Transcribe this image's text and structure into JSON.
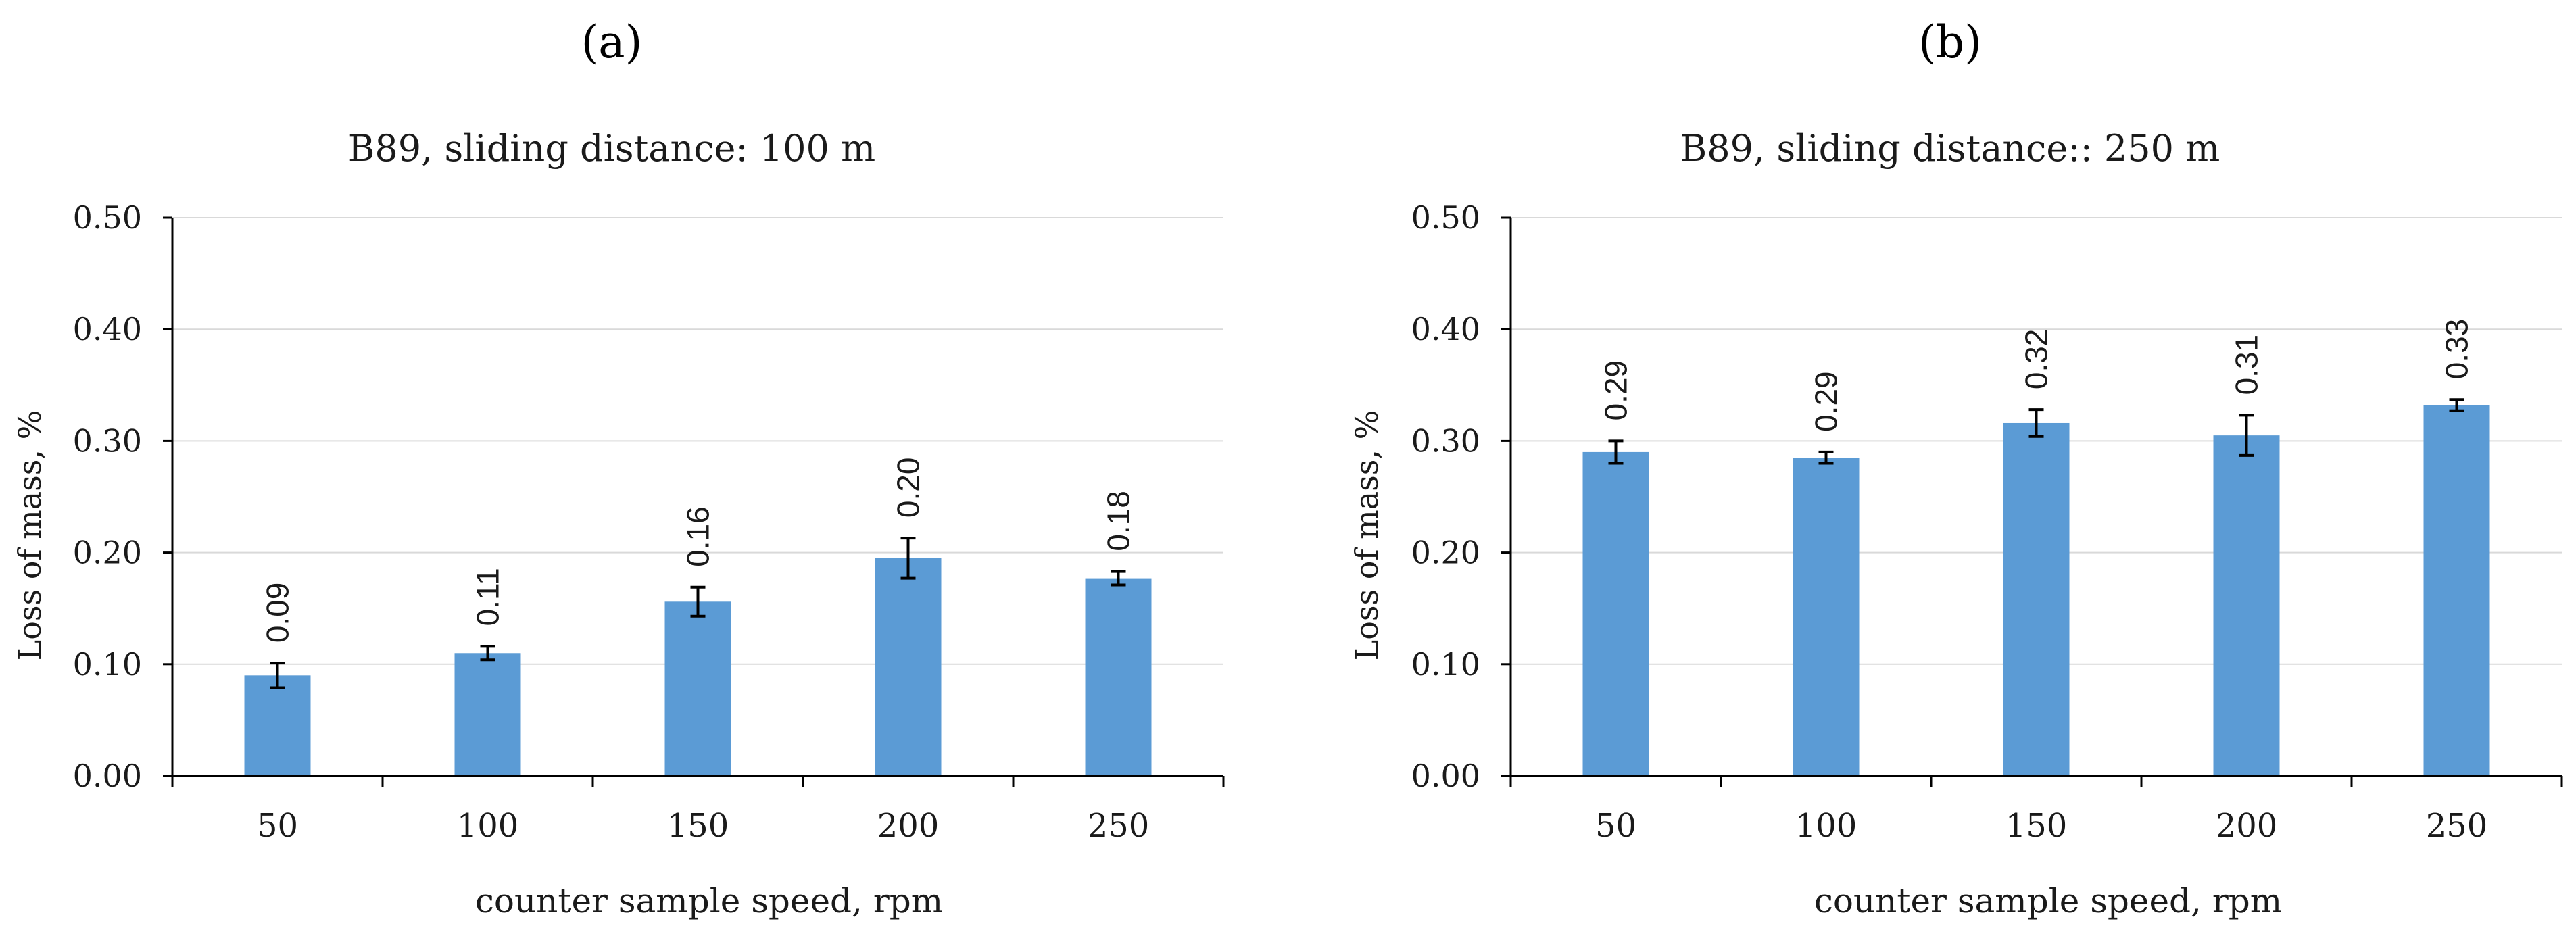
{
  "chart_data": [
    {
      "type": "bar",
      "panel_label": "(a)",
      "title": "B89, sliding  distance: 100 m",
      "xlabel": "counter sample speed, rpm",
      "ylabel": "Loss of mass, %",
      "categories": [
        "50",
        "100",
        "150",
        "200",
        "250"
      ],
      "values": [
        0.09,
        0.11,
        0.156,
        0.195,
        0.177
      ],
      "data_labels": [
        "0.09",
        "0.11",
        "0.16",
        "0.20",
        "0.18"
      ],
      "errors": [
        0.011,
        0.006,
        0.013,
        0.018,
        0.006
      ],
      "ylim": [
        0,
        0.5
      ],
      "yticks": [
        "0.00",
        "0.10",
        "0.20",
        "0.30",
        "0.40",
        "0.50"
      ],
      "ytick_values": [
        0,
        0.1,
        0.2,
        0.3,
        0.4,
        0.5
      ],
      "grid": true,
      "bar_color": "#5B9BD5"
    },
    {
      "type": "bar",
      "panel_label": "(b)",
      "title": "B89, sliding distance:: 250 m",
      "xlabel": "counter sample speed,  rpm",
      "ylabel": "Loss of mass, %",
      "categories": [
        "50",
        "100",
        "150",
        "200",
        "250"
      ],
      "values": [
        0.29,
        0.285,
        0.316,
        0.305,
        0.332
      ],
      "data_labels": [
        "0.29",
        "0.29",
        "0.32",
        "0.31",
        "0.33"
      ],
      "errors": [
        0.01,
        0.005,
        0.012,
        0.018,
        0.005
      ],
      "ylim": [
        0,
        0.5
      ],
      "yticks": [
        "0.00",
        "0.10",
        "0.20",
        "0.30",
        "0.40",
        "0.50"
      ],
      "ytick_values": [
        0,
        0.1,
        0.2,
        0.3,
        0.4,
        0.5
      ],
      "grid": true,
      "bar_color": "#5B9BD5"
    }
  ]
}
